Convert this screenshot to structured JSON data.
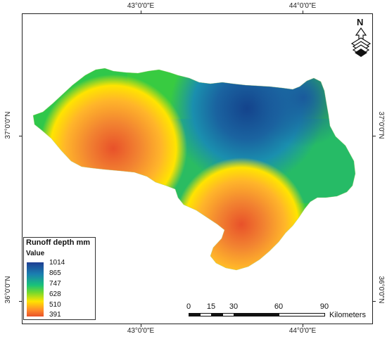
{
  "graticule": {
    "lon_labels": [
      "43°0'0\"E",
      "44°0'0\"E"
    ],
    "lat_labels": [
      "37°0'0\"N",
      "36°0'0\"N"
    ]
  },
  "north_arrow": {
    "label": "N",
    "icon": "north-arrow-icon"
  },
  "legend": {
    "title": "Runoff depth mm",
    "subtitle": "Value",
    "values": [
      "1014",
      "865",
      "747",
      "628",
      "510",
      "391"
    ],
    "colors": [
      "#1f3f93",
      "#1a7fb0",
      "#18c27a",
      "#6fd82f",
      "#ffe400",
      "#ff8c2a",
      "#e8512a"
    ]
  },
  "scale_bar": {
    "labels": [
      "0",
      "15",
      "30",
      "60",
      "90"
    ],
    "unit": "Kilometers"
  }
}
